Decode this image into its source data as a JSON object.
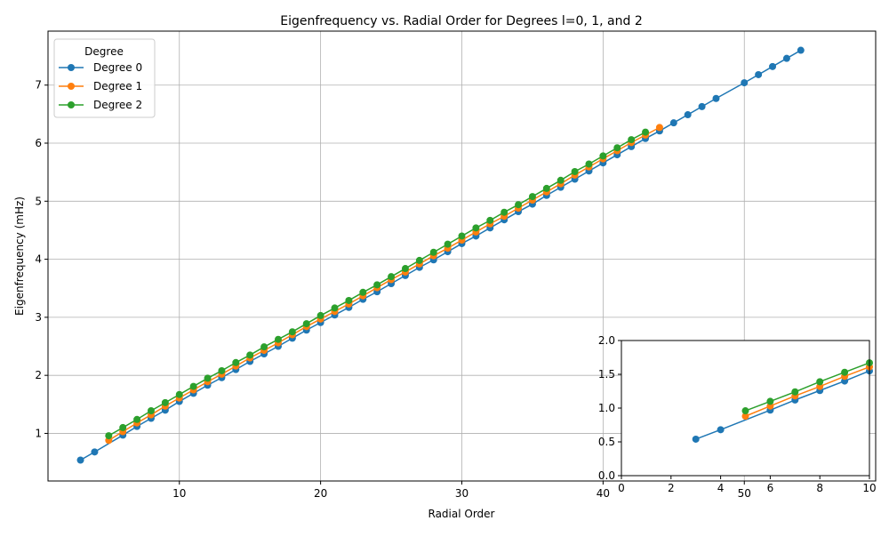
{
  "chart_data": [
    {
      "type": "line",
      "title": "Eigenfrequency vs. Radial Order for Degrees l=0, 1, and 2",
      "xlabel": "Radial Order",
      "ylabel": "Eigenfrequency (mHz)",
      "xlim": [
        0.7,
        59.3
      ],
      "ylim": [
        0.18,
        7.93
      ],
      "xticks": [
        10,
        20,
        30,
        40,
        50
      ],
      "yticks": [
        1,
        2,
        3,
        4,
        5,
        6,
        7
      ],
      "grid": true,
      "legend": {
        "title": "Degree",
        "placement": "top-left"
      },
      "series": [
        {
          "name": "Degree 0",
          "color": "#1f77b4",
          "x": [
            3,
            4,
            6,
            7,
            8,
            9,
            10,
            11,
            12,
            13,
            14,
            15,
            16,
            17,
            18,
            19,
            20,
            21,
            22,
            23,
            24,
            25,
            26,
            27,
            28,
            29,
            30,
            31,
            32,
            33,
            34,
            35,
            36,
            37,
            38,
            39,
            40,
            41,
            42,
            43,
            44,
            45,
            46,
            47,
            48,
            50,
            51,
            52,
            53,
            54
          ],
          "values": [
            0.54,
            0.68,
            0.97,
            1.12,
            1.26,
            1.4,
            1.55,
            1.69,
            1.83,
            1.96,
            2.1,
            2.24,
            2.37,
            2.5,
            2.64,
            2.78,
            2.91,
            3.04,
            3.17,
            3.31,
            3.44,
            3.58,
            3.72,
            3.86,
            3.99,
            4.13,
            4.27,
            4.4,
            4.54,
            4.68,
            4.82,
            4.95,
            5.1,
            5.24,
            5.38,
            5.52,
            5.66,
            5.8,
            5.94,
            6.08,
            6.21,
            6.35,
            6.49,
            6.63,
            6.77,
            7.04,
            7.18,
            7.32,
            7.46,
            7.6
          ]
        },
        {
          "name": "Degree 1",
          "color": "#ff7f0e",
          "x": [
            5,
            6,
            7,
            8,
            9,
            10,
            11,
            12,
            13,
            14,
            15,
            16,
            17,
            18,
            19,
            20,
            21,
            22,
            23,
            24,
            25,
            26,
            27,
            28,
            29,
            30,
            31,
            32,
            33,
            34,
            35,
            36,
            37,
            38,
            39,
            40,
            41,
            42,
            43,
            44
          ],
          "values": [
            0.88,
            1.03,
            1.18,
            1.32,
            1.47,
            1.61,
            1.75,
            1.89,
            2.02,
            2.16,
            2.3,
            2.43,
            2.56,
            2.7,
            2.84,
            2.97,
            3.1,
            3.23,
            3.37,
            3.51,
            3.65,
            3.78,
            3.92,
            4.06,
            4.19,
            4.33,
            4.47,
            4.61,
            4.74,
            4.88,
            5.02,
            5.16,
            5.3,
            5.45,
            5.59,
            5.73,
            5.87,
            6.01,
            6.14,
            6.27
          ]
        },
        {
          "name": "Degree 2",
          "color": "#2ca02c",
          "x": [
            5,
            6,
            7,
            8,
            9,
            10,
            11,
            12,
            13,
            14,
            15,
            16,
            17,
            18,
            19,
            20,
            21,
            22,
            23,
            24,
            25,
            26,
            27,
            28,
            29,
            30,
            31,
            32,
            33,
            34,
            35,
            36,
            37,
            38,
            39,
            40,
            41,
            42,
            43
          ],
          "values": [
            0.96,
            1.1,
            1.24,
            1.39,
            1.53,
            1.67,
            1.81,
            1.95,
            2.08,
            2.22,
            2.35,
            2.49,
            2.62,
            2.75,
            2.89,
            3.03,
            3.16,
            3.29,
            3.43,
            3.56,
            3.7,
            3.84,
            3.98,
            4.12,
            4.26,
            4.4,
            4.54,
            4.67,
            4.81,
            4.94,
            5.08,
            5.22,
            5.36,
            5.51,
            5.64,
            5.78,
            5.92,
            6.06,
            6.19
          ]
        }
      ]
    },
    {
      "type": "line",
      "title": "",
      "xlabel": "",
      "ylabel": "",
      "xlim": [
        0,
        10
      ],
      "ylim": [
        0,
        2
      ],
      "xticks": [
        0,
        2,
        4,
        6,
        8,
        10
      ],
      "yticks": [
        0.0,
        0.5,
        1.0,
        1.5,
        2.0
      ],
      "ytick_labels": [
        "0.0",
        "0.5",
        "1.0",
        "1.5",
        "2.0"
      ],
      "grid": false,
      "placement": "inset-bottom-right",
      "series": [
        {
          "name": "Degree 0",
          "color": "#1f77b4",
          "x": [
            3,
            4,
            6,
            7,
            8,
            9,
            10
          ],
          "values": [
            0.54,
            0.68,
            0.97,
            1.12,
            1.26,
            1.4,
            1.55
          ]
        },
        {
          "name": "Degree 1",
          "color": "#ff7f0e",
          "x": [
            5,
            6,
            7,
            8,
            9,
            10
          ],
          "values": [
            0.88,
            1.03,
            1.18,
            1.32,
            1.47,
            1.61
          ]
        },
        {
          "name": "Degree 2",
          "color": "#2ca02c",
          "x": [
            5,
            6,
            7,
            8,
            9,
            10
          ],
          "values": [
            0.96,
            1.1,
            1.24,
            1.39,
            1.53,
            1.67
          ]
        }
      ]
    }
  ]
}
